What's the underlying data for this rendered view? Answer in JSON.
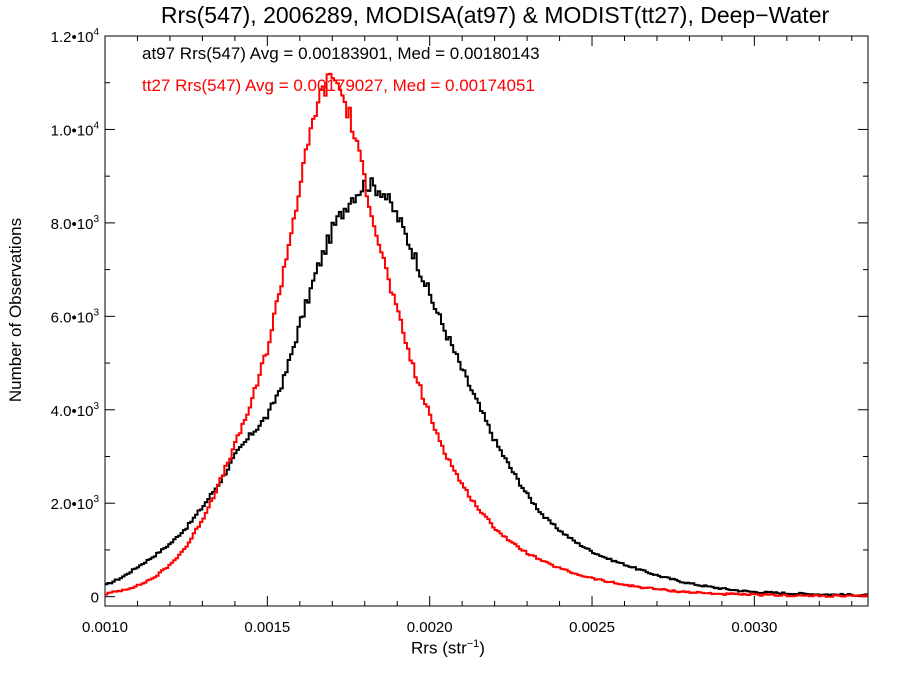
{
  "chart_data": {
    "type": "line",
    "title": "Rrs(547), 2006289, MODISA(at97) & MODIST(tt27), Deep−Water",
    "xlabel_base": "Rrs (str",
    "xlabel_sup": "−1",
    "xlabel_end": ")",
    "ylabel": "Number of Observations",
    "xlim": [
      0.001,
      0.00335
    ],
    "ylim": [
      -200,
      12000
    ],
    "x_ticks": [
      "0.0010",
      "0.0015",
      "0.0020",
      "0.0025",
      "0.0030"
    ],
    "x_tick_values": [
      0.001,
      0.0015,
      0.002,
      0.0025,
      0.003
    ],
    "y_ticks": [
      {
        "value": 0,
        "mant": "0",
        "exp": ""
      },
      {
        "value": 2000,
        "mant": "2.0•10",
        "exp": "3"
      },
      {
        "value": 4000,
        "mant": "4.0•10",
        "exp": "3"
      },
      {
        "value": 6000,
        "mant": "6.0•10",
        "exp": "3"
      },
      {
        "value": 8000,
        "mant": "8.0•10",
        "exp": "3"
      },
      {
        "value": 10000,
        "mant": "1.0•10",
        "exp": "4"
      },
      {
        "value": 12000,
        "mant": "1.2•10",
        "exp": "4"
      }
    ],
    "grid": false,
    "annotations": [
      "at97 Rrs(547) Avg = 0.00183901, Med = 0.00180143",
      "tt27 Rrs(547) Avg = 0.00179027, Med = 0.00174051"
    ],
    "colors": {
      "at97": "#000000",
      "tt27": "#ff0000"
    },
    "series": [
      {
        "color": "#000000",
        "points": [
          [
            0.001,
            250
          ],
          [
            0.00105,
            420
          ],
          [
            0.0011,
            650
          ],
          [
            0.00115,
            880
          ],
          [
            0.0012,
            1150
          ],
          [
            0.00125,
            1500
          ],
          [
            0.0013,
            1950
          ],
          [
            0.00135,
            2450
          ],
          [
            0.0014,
            3050
          ],
          [
            0.00145,
            3500
          ],
          [
            0.0015,
            3900
          ],
          [
            0.00155,
            4700
          ],
          [
            0.0016,
            5900
          ],
          [
            0.00165,
            7000
          ],
          [
            0.0017,
            7900
          ],
          [
            0.00175,
            8500
          ],
          [
            0.0018,
            8850
          ],
          [
            0.00185,
            8700
          ],
          [
            0.0019,
            8100
          ],
          [
            0.00195,
            7300
          ],
          [
            0.002,
            6400
          ],
          [
            0.00205,
            5600
          ],
          [
            0.0021,
            4800
          ],
          [
            0.00215,
            4050
          ],
          [
            0.0022,
            3300
          ],
          [
            0.00225,
            2700
          ],
          [
            0.0023,
            2150
          ],
          [
            0.00235,
            1700
          ],
          [
            0.0024,
            1400
          ],
          [
            0.00245,
            1150
          ],
          [
            0.0025,
            950
          ],
          [
            0.00255,
            800
          ],
          [
            0.0026,
            680
          ],
          [
            0.00265,
            560
          ],
          [
            0.0027,
            450
          ],
          [
            0.00275,
            360
          ],
          [
            0.0028,
            280
          ],
          [
            0.00285,
            220
          ],
          [
            0.0029,
            170
          ],
          [
            0.00295,
            130
          ],
          [
            0.003,
            100
          ],
          [
            0.0031,
            70
          ],
          [
            0.0032,
            50
          ],
          [
            0.00335,
            30
          ]
        ]
      },
      {
        "color": "#ff0000",
        "points": [
          [
            0.001,
            60
          ],
          [
            0.00105,
            140
          ],
          [
            0.0011,
            240
          ],
          [
            0.00115,
            420
          ],
          [
            0.0012,
            700
          ],
          [
            0.00125,
            1100
          ],
          [
            0.0013,
            1700
          ],
          [
            0.00135,
            2450
          ],
          [
            0.0014,
            3300
          ],
          [
            0.00145,
            4200
          ],
          [
            0.0015,
            5400
          ],
          [
            0.00155,
            7100
          ],
          [
            0.0016,
            8900
          ],
          [
            0.00165,
            10600
          ],
          [
            0.0017,
            11200
          ],
          [
            0.00175,
            10300
          ],
          [
            0.0018,
            8800
          ],
          [
            0.00185,
            7300
          ],
          [
            0.0019,
            6000
          ],
          [
            0.00195,
            4800
          ],
          [
            0.002,
            3800
          ],
          [
            0.00205,
            3000
          ],
          [
            0.0021,
            2350
          ],
          [
            0.00215,
            1850
          ],
          [
            0.0022,
            1450
          ],
          [
            0.00225,
            1150
          ],
          [
            0.0023,
            920
          ],
          [
            0.00235,
            740
          ],
          [
            0.0024,
            600
          ],
          [
            0.00245,
            480
          ],
          [
            0.0025,
            390
          ],
          [
            0.00255,
            310
          ],
          [
            0.0026,
            250
          ],
          [
            0.00265,
            200
          ],
          [
            0.0027,
            160
          ],
          [
            0.00275,
            120
          ],
          [
            0.0028,
            95
          ],
          [
            0.00285,
            75
          ],
          [
            0.0029,
            55
          ],
          [
            0.003,
            40
          ],
          [
            0.0031,
            25
          ],
          [
            0.0032,
            15
          ],
          [
            0.00335,
            10
          ]
        ]
      }
    ]
  }
}
